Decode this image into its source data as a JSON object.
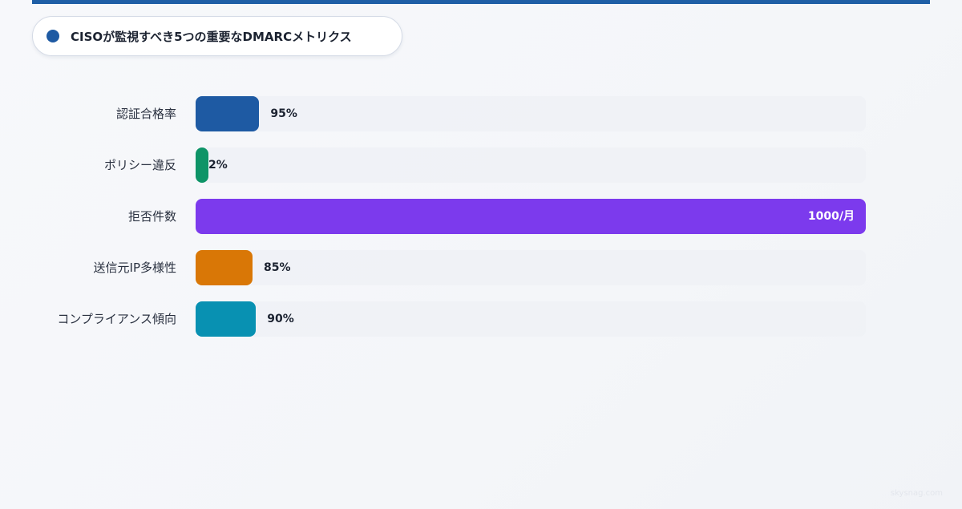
{
  "header": {
    "title": "CISOが監視すべき5つの重要なDMARCメトリクス"
  },
  "chart_data": {
    "type": "bar",
    "orientation": "horizontal",
    "title": "CISOが監視すべき5つの重要なDMARCメトリクス",
    "categories": [
      "認証合格率",
      "ポリシー違反",
      "拒否件数",
      "送信元IP多様性",
      "コンプライアンス傾向"
    ],
    "values": [
      95,
      2,
      1000,
      85,
      90
    ],
    "value_labels": [
      "95%",
      "2%",
      "1000/月",
      "85%",
      "90%"
    ],
    "colors": [
      "#1e5aa3",
      "#0e9467",
      "#7c3aed",
      "#d97706",
      "#0891b2"
    ],
    "xlim": [
      0,
      1000
    ],
    "grid": false,
    "legend": "none"
  },
  "footer": {
    "watermark": "skysnag.com"
  }
}
